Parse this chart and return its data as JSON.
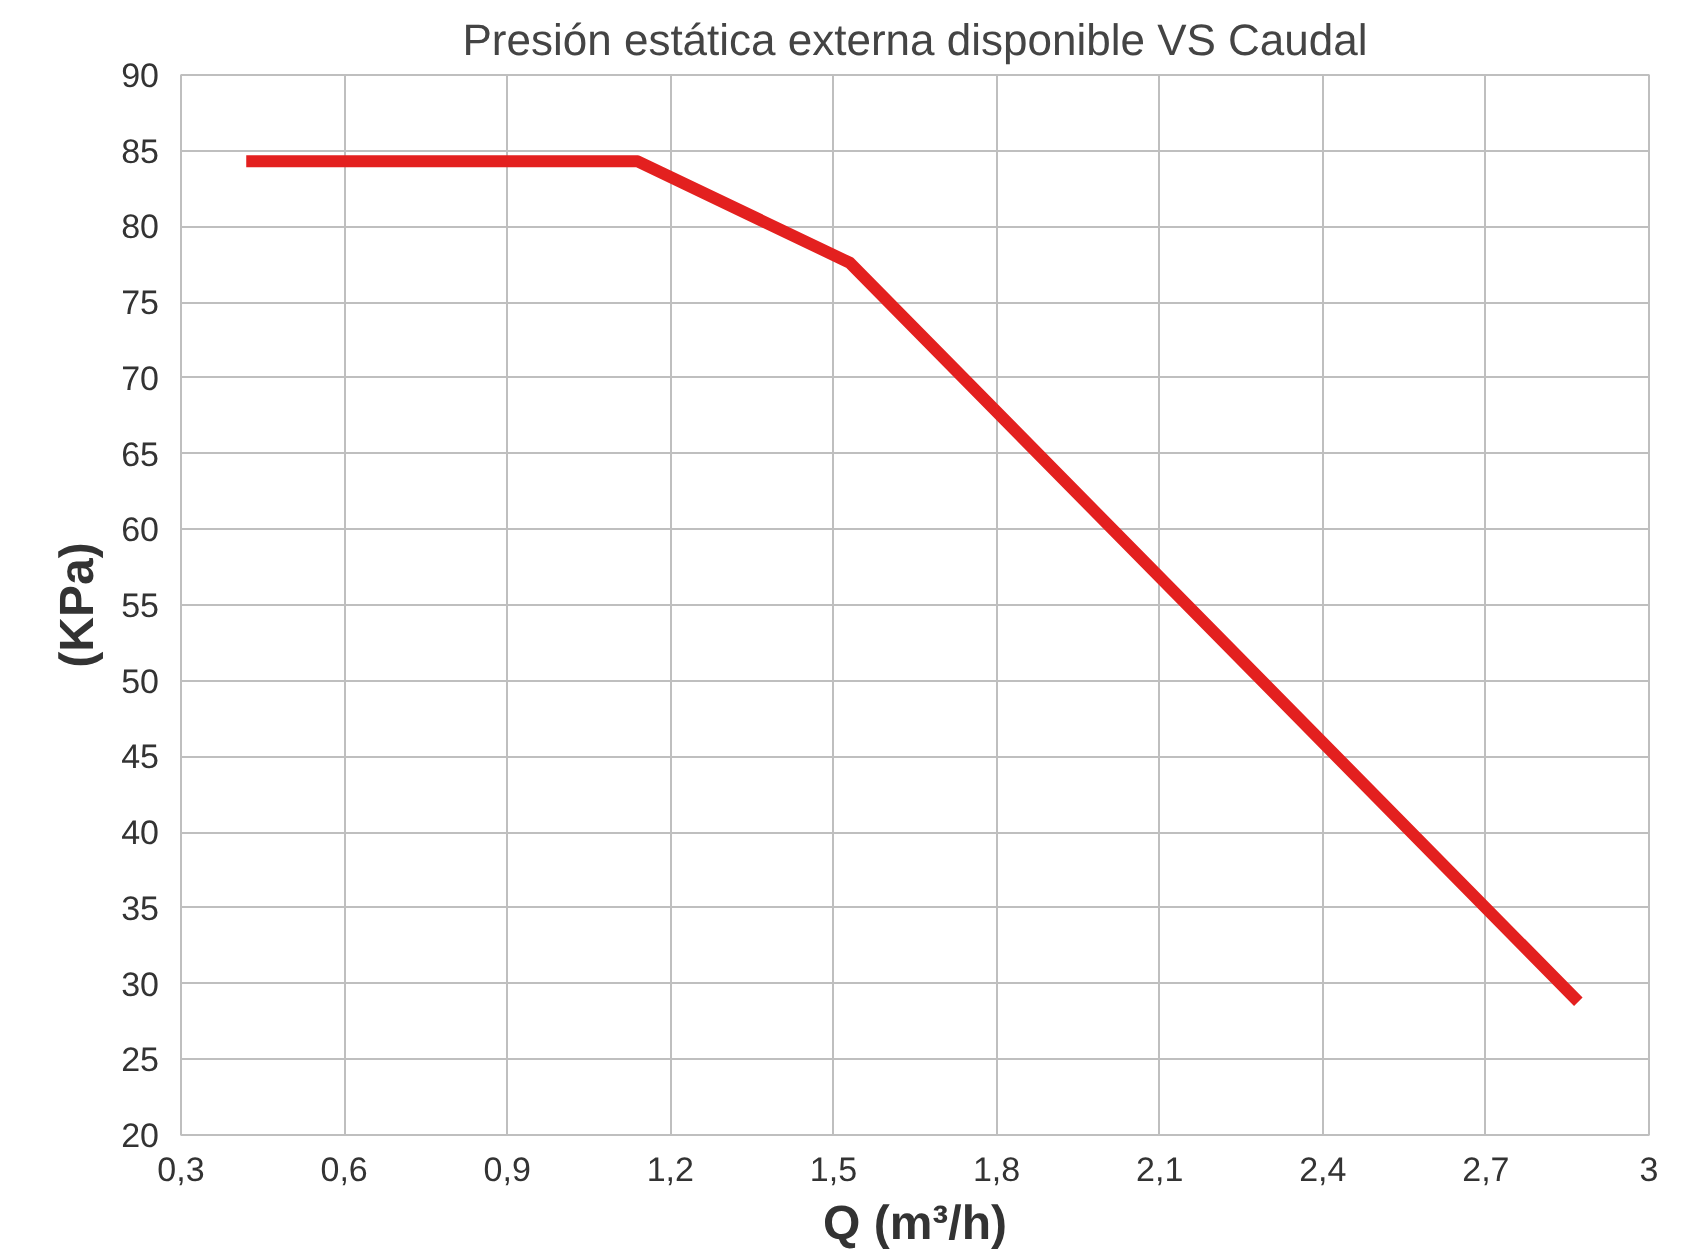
{
  "chart_data": {
    "type": "line",
    "title": "Presión estática externa disponible VS Caudal",
    "xlabel": "Q (m³/h)",
    "ylabel": "(KPa)",
    "x": [
      0.42,
      1.14,
      1.53,
      2.87
    ],
    "series": [
      {
        "color": "#e3201f",
        "values": [
          84.3,
          84.3,
          77.6,
          28.8
        ]
      }
    ],
    "xlim": [
      0.3,
      3
    ],
    "xticks": [
      {
        "value": 0.3,
        "label": "0,3"
      },
      {
        "value": 0.6,
        "label": "0,6"
      },
      {
        "value": 0.9,
        "label": "0,9"
      },
      {
        "value": 1.2,
        "label": "1,2"
      },
      {
        "value": 1.5,
        "label": "1,5"
      },
      {
        "value": 1.8,
        "label": "1,8"
      },
      {
        "value": 2.1,
        "label": "2,1"
      },
      {
        "value": 2.4,
        "label": "2,4"
      },
      {
        "value": 2.7,
        "label": "2,7"
      },
      {
        "value": 3,
        "label": "3"
      }
    ],
    "ylim": [
      20,
      90
    ],
    "yticks": [
      20,
      25,
      30,
      35,
      40,
      45,
      50,
      55,
      60,
      65,
      70,
      75,
      80,
      85,
      90
    ],
    "grid": true,
    "marker": "none",
    "line_style": "solid"
  }
}
